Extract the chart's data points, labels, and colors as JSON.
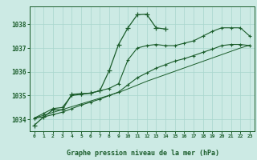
{
  "bg_color": "#cceae4",
  "grid_color": "#a8d5cc",
  "line_color": "#1a5c2a",
  "title": "Graphe pression niveau de la mer (hPa)",
  "xlabel_hours": [
    0,
    1,
    2,
    3,
    4,
    5,
    6,
    7,
    8,
    9,
    10,
    11,
    12,
    13,
    14,
    15,
    16,
    17,
    18,
    19,
    20,
    21,
    22,
    23
  ],
  "ylim": [
    1033.5,
    1038.75
  ],
  "yticks": [
    1034,
    1035,
    1036,
    1037,
    1038
  ],
  "series_main": [
    1033.75,
    1034.1,
    1034.4,
    1034.4,
    1035.05,
    1035.08,
    1035.1,
    1035.2,
    1036.05,
    1037.15,
    1037.85,
    1038.4,
    1038.42,
    1037.85,
    1037.8,
    null,
    null,
    null,
    null,
    null,
    null,
    null,
    null,
    null
  ],
  "series_smooth1": [
    1034.05,
    1034.25,
    1034.45,
    1034.5,
    1035.0,
    1035.05,
    1035.1,
    1035.2,
    1035.3,
    1035.5,
    1036.5,
    1037.0,
    1037.1,
    1037.15,
    1037.1,
    1037.1,
    1037.2,
    1037.3,
    1037.5,
    1037.7,
    1037.85,
    1037.85,
    1037.85,
    1037.5
  ],
  "series_smooth2": [
    1034.05,
    1034.1,
    1034.2,
    1034.3,
    1034.45,
    1034.6,
    1034.72,
    1034.85,
    1035.0,
    1035.15,
    1035.45,
    1035.75,
    1035.95,
    1036.15,
    1036.3,
    1036.45,
    1036.55,
    1036.68,
    1036.82,
    1036.95,
    1037.1,
    1037.15,
    1037.15,
    1037.1
  ],
  "series_line": [
    1034.05,
    1034.17,
    1034.29,
    1034.41,
    1034.53,
    1034.65,
    1034.77,
    1034.89,
    1035.01,
    1035.13,
    1035.28,
    1035.44,
    1035.6,
    1035.74,
    1035.88,
    1036.02,
    1036.16,
    1036.3,
    1036.44,
    1036.58,
    1036.72,
    1036.86,
    1037.0,
    1037.12
  ]
}
